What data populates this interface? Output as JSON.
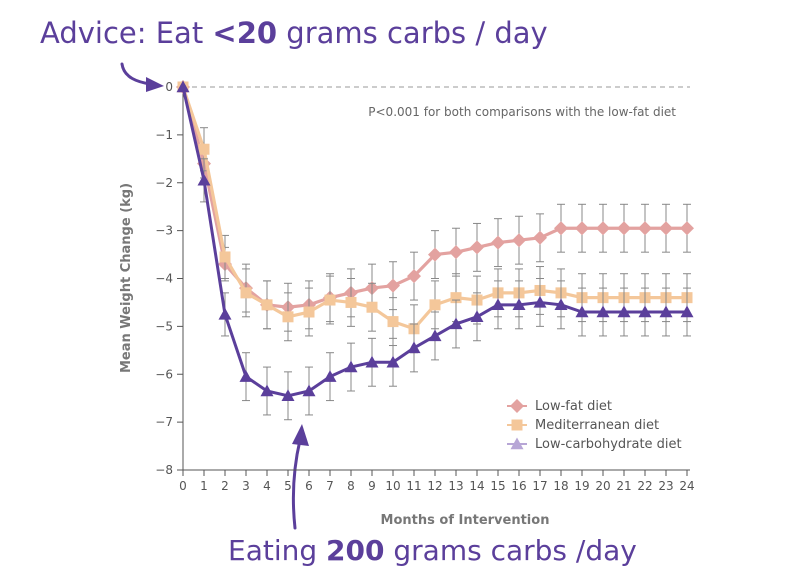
{
  "annotations": {
    "top": {
      "pre": "Advice: Eat ",
      "bold": "<20",
      "post": " grams carbs / day"
    },
    "bottom": {
      "pre": "Eating ",
      "bold": "200",
      "post": " grams carbs /day"
    },
    "color": "#5b3f9b"
  },
  "chart_data": {
    "type": "line",
    "ylabel": "Mean Weight Change (kg)",
    "xlabel": "Months of Intervention",
    "note": "P<0.001 for both comparisons with the low-fat diet",
    "xlim": [
      0,
      24
    ],
    "ylim": [
      -8,
      0
    ],
    "xticks": [
      0,
      1,
      2,
      3,
      4,
      5,
      6,
      7,
      8,
      9,
      10,
      11,
      12,
      13,
      14,
      15,
      16,
      17,
      18,
      19,
      20,
      21,
      22,
      23,
      24
    ],
    "yticks": [
      0,
      -1,
      -2,
      -3,
      -4,
      -5,
      -6,
      -7,
      -8
    ],
    "ytick_labels": [
      "0",
      "−1",
      "−2",
      "−3",
      "−4",
      "−5",
      "−6",
      "−7",
      "−8"
    ],
    "reference_line_y": 0,
    "legend_position": "bottom-right",
    "series": [
      {
        "name": "Low-fat diet",
        "color": "#e3a2a0",
        "marker": "diamond",
        "x": [
          0,
          1,
          2,
          3,
          4,
          5,
          6,
          7,
          8,
          9,
          10,
          11,
          12,
          13,
          14,
          15,
          16,
          17,
          18,
          19,
          20,
          21,
          22,
          23,
          24
        ],
        "y": [
          0,
          -1.6,
          -3.7,
          -4.2,
          -4.55,
          -4.6,
          -4.55,
          -4.4,
          -4.3,
          -4.2,
          -4.15,
          -3.95,
          -3.5,
          -3.45,
          -3.35,
          -3.25,
          -3.2,
          -3.15,
          -2.95,
          -2.95,
          -2.95,
          -2.95,
          -2.95,
          -2.95,
          -2.95
        ],
        "err": [
          0,
          0.3,
          0.35,
          0.5,
          0.5,
          0.5,
          0.5,
          0.5,
          0.5,
          0.5,
          0.5,
          0.5,
          0.5,
          0.5,
          0.5,
          0.5,
          0.5,
          0.5,
          0.5,
          0.5,
          0.5,
          0.5,
          0.5,
          0.5,
          0.5
        ]
      },
      {
        "name": "Mediterranean diet",
        "color": "#f4c79a",
        "marker": "square",
        "x": [
          0,
          1,
          2,
          3,
          4,
          5,
          6,
          7,
          8,
          9,
          10,
          11,
          12,
          13,
          14,
          15,
          16,
          17,
          18,
          19,
          20,
          21,
          22,
          23,
          24
        ],
        "y": [
          0,
          -1.3,
          -3.55,
          -4.3,
          -4.55,
          -4.8,
          -4.7,
          -4.45,
          -4.5,
          -4.6,
          -4.9,
          -5.05,
          -4.55,
          -4.4,
          -4.45,
          -4.3,
          -4.3,
          -4.25,
          -4.3,
          -4.4,
          -4.4,
          -4.4,
          -4.4,
          -4.4,
          -4.4
        ],
        "err": [
          0,
          0.45,
          0.45,
          0.5,
          0.5,
          0.5,
          0.5,
          0.5,
          0.5,
          0.5,
          0.5,
          0.5,
          0.5,
          0.5,
          0.5,
          0.5,
          0.5,
          0.5,
          0.5,
          0.5,
          0.5,
          0.5,
          0.5,
          0.5,
          0.5
        ]
      },
      {
        "name": "Low-carbohydrate diet",
        "color": "#5b3f9b",
        "legend_color": "#b7a6d6",
        "marker": "triangle",
        "x": [
          0,
          1,
          2,
          3,
          4,
          5,
          6,
          7,
          8,
          9,
          10,
          11,
          12,
          13,
          14,
          15,
          16,
          17,
          18,
          19,
          20,
          21,
          22,
          23,
          24
        ],
        "y": [
          0,
          -1.95,
          -4.75,
          -6.05,
          -6.35,
          -6.45,
          -6.35,
          -6.05,
          -5.85,
          -5.75,
          -5.75,
          -5.45,
          -5.2,
          -4.95,
          -4.8,
          -4.55,
          -4.55,
          -4.5,
          -4.55,
          -4.7,
          -4.7,
          -4.7,
          -4.7,
          -4.7,
          -4.7
        ],
        "err": [
          0,
          0.45,
          0.45,
          0.5,
          0.5,
          0.5,
          0.5,
          0.5,
          0.5,
          0.5,
          0.5,
          0.5,
          0.5,
          0.5,
          0.5,
          0.5,
          0.5,
          0.5,
          0.5,
          0.5,
          0.5,
          0.5,
          0.5,
          0.5,
          0.5
        ]
      }
    ]
  }
}
